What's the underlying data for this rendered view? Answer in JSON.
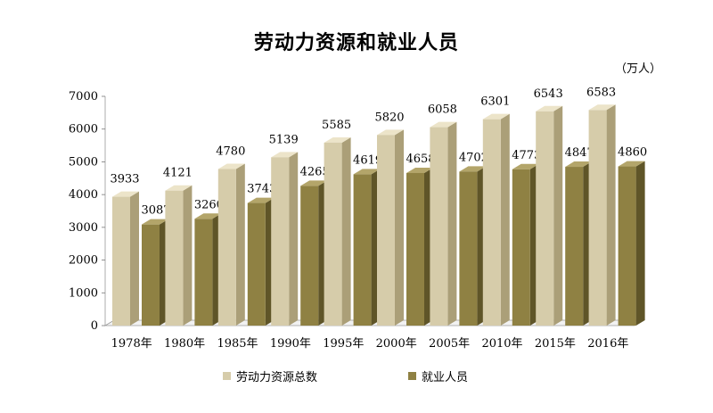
{
  "title": "劳动力资源和就业人员",
  "unit": "（万人）",
  "colors": {
    "labor_front": "#d6ccaa",
    "labor_side": "#ab9f78",
    "labor_top": "#ece4c9",
    "emp_front": "#8f8143",
    "emp_side": "#5f5528",
    "emp_top": "#b3a56a"
  },
  "chart_data": {
    "type": "bar",
    "categories": [
      "1978年",
      "1980年",
      "1985年",
      "1990年",
      "1995年",
      "2000年",
      "2005年",
      "2010年",
      "2015年",
      "2016年"
    ],
    "series": [
      {
        "name": "劳动力资源总数",
        "values": [
          3933,
          4121,
          4780,
          5139,
          5585,
          5820,
          6058,
          6301,
          6543,
          6583
        ]
      },
      {
        "name": "就业人员",
        "values": [
          3087,
          3260,
          3743,
          4265,
          4619,
          4658,
          4702,
          4773,
          4847,
          4860
        ]
      }
    ],
    "ylim": [
      0,
      7000
    ],
    "yticks": [
      0,
      1000,
      2000,
      3000,
      4000,
      5000,
      6000,
      7000
    ],
    "legend_position": "bottom",
    "grid": false
  }
}
